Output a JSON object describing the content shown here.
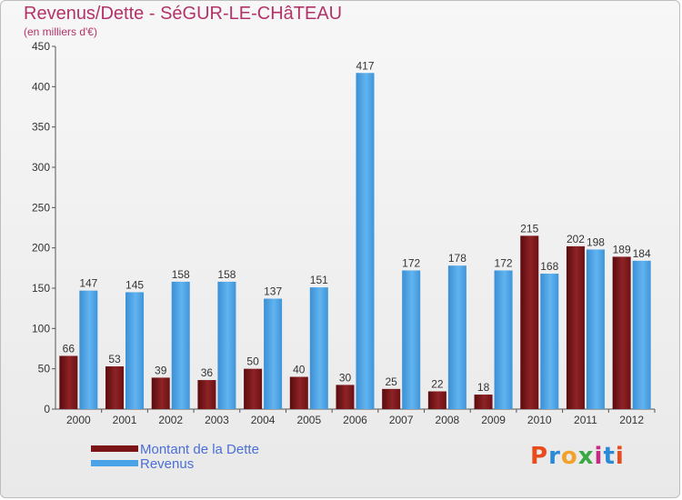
{
  "title": "Revenus/Dette - SéGUR-LE-CHâTEAU",
  "subtitle": "(en milliers d'€)",
  "colors": {
    "dette": "#7a1417",
    "revenus": "#4aa3e6"
  },
  "legend": [
    {
      "key": "dette",
      "label": "Montant de la Dette"
    },
    {
      "key": "revenus",
      "label": "Revenus"
    }
  ],
  "logo": {
    "letters": [
      "P",
      "r",
      "o",
      "x",
      "i",
      "t",
      "i"
    ],
    "colors": [
      "#e84b1c",
      "#2a8ad8",
      "#f2a12b",
      "#3aa845",
      "#c52b83",
      "#2a8ad8",
      "#e84b1c"
    ]
  },
  "chart_data": {
    "type": "bar",
    "categories": [
      "2000",
      "2001",
      "2002",
      "2003",
      "2004",
      "2005",
      "2006",
      "2007",
      "2008",
      "2009",
      "2010",
      "2011",
      "2012"
    ],
    "series": [
      {
        "name": "Montant de la Dette",
        "values": [
          66,
          53,
          39,
          36,
          50,
          40,
          30,
          25,
          22,
          18,
          215,
          202,
          189
        ]
      },
      {
        "name": "Revenus",
        "values": [
          147,
          145,
          158,
          158,
          137,
          151,
          417,
          172,
          178,
          172,
          168,
          198,
          184
        ]
      }
    ],
    "ylim": [
      0,
      450
    ],
    "yticks": [
      0,
      50,
      100,
      150,
      200,
      250,
      300,
      350,
      400,
      450
    ],
    "grid": false,
    "legend_position": "bottom-left"
  }
}
